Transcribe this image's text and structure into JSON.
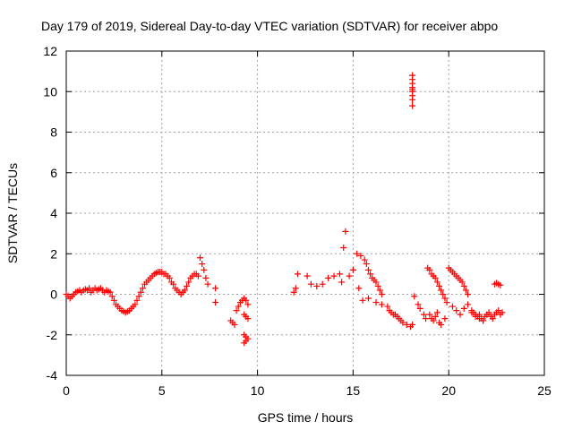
{
  "chart_data": {
    "type": "scatter",
    "title": "Day 179 of 2019, Sidereal Day-to-day VTEC variation (SDTVAR) for receiver abpo",
    "xlabel": "GPS time / hours",
    "ylabel": "SDTVAR / TECUs",
    "xlim": [
      0,
      25
    ],
    "ylim": [
      -4,
      12
    ],
    "xticks": [
      0,
      5,
      10,
      15,
      20,
      25
    ],
    "yticks": [
      -4,
      -2,
      0,
      2,
      4,
      6,
      8,
      10,
      12
    ],
    "xtick_labels": [
      "0",
      "5",
      "10",
      "15",
      "20",
      "25"
    ],
    "ytick_labels": [
      "-4",
      "-2",
      "0",
      "2",
      "4",
      "6",
      "8",
      "10",
      "12"
    ],
    "grid": true,
    "marker": "+",
    "color": "#ff0000",
    "series": [
      {
        "name": "SDTVAR",
        "x": [
          0.0,
          0.1,
          0.2,
          0.3,
          0.4,
          0.5,
          0.6,
          0.7,
          0.8,
          0.9,
          1.0,
          1.1,
          1.2,
          1.3,
          1.4,
          1.5,
          1.6,
          1.7,
          1.8,
          1.9,
          2.0,
          2.1,
          2.2,
          2.3,
          2.4,
          2.5,
          2.6,
          2.7,
          2.8,
          2.9,
          3.0,
          3.1,
          3.2,
          3.3,
          3.4,
          3.5,
          3.6,
          3.7,
          3.8,
          3.9,
          4.0,
          4.1,
          4.2,
          4.3,
          4.4,
          4.5,
          4.6,
          4.7,
          4.8,
          4.9,
          5.0,
          5.1,
          5.2,
          5.3,
          5.4,
          5.5,
          5.6,
          5.7,
          5.8,
          5.9,
          6.0,
          6.1,
          6.2,
          6.3,
          6.4,
          6.5,
          6.6,
          6.7,
          6.8,
          6.9,
          7.0,
          7.1,
          7.2,
          7.3,
          7.4,
          7.8,
          7.8,
          8.6,
          8.7,
          8.8,
          8.9,
          9.0,
          9.1,
          9.2,
          9.3,
          9.4,
          9.5,
          9.3,
          9.4,
          9.5,
          9.3,
          9.4,
          9.5,
          9.3,
          9.4,
          11.9,
          12.0,
          12.1,
          12.6,
          12.8,
          13.1,
          13.4,
          13.7,
          14.0,
          14.3,
          14.5,
          14.6,
          14.4,
          14.8,
          15.0,
          15.2,
          15.4,
          15.6,
          15.7,
          15.8,
          15.9,
          16.0,
          16.1,
          16.2,
          16.3,
          16.4,
          16.5,
          15.3,
          15.5,
          15.8,
          16.2,
          16.5,
          16.8,
          16.9,
          17.0,
          17.1,
          17.2,
          17.3,
          17.4,
          17.5,
          17.6,
          17.8,
          18.0,
          18.1,
          18.2,
          18.1,
          18.1,
          18.1,
          18.1,
          18.1,
          18.1,
          18.1,
          18.1,
          18.1,
          18.4,
          18.5,
          18.7,
          18.8,
          18.9,
          19.0,
          19.1,
          19.2,
          19.3,
          19.4,
          19.5,
          19.6,
          19.7,
          19.8,
          19.9,
          19.0,
          19.1,
          19.2,
          19.3,
          19.4,
          19.5,
          19.6,
          19.8,
          20.0,
          20.1,
          20.2,
          20.3,
          20.4,
          20.5,
          20.6,
          20.7,
          20.8,
          20.9,
          21.0,
          20.2,
          20.4,
          20.6,
          20.8,
          21.0,
          21.2,
          21.4,
          21.6,
          21.8,
          22.0,
          21.2,
          21.3,
          21.4,
          21.5,
          21.6,
          21.7,
          21.8,
          21.9,
          22.0,
          22.1,
          22.2,
          22.3,
          22.4,
          22.5,
          22.6,
          22.7,
          22.8,
          22.4,
          22.5,
          22.6,
          22.7
        ],
        "y": [
          0.0,
          -0.1,
          -0.2,
          -0.1,
          0.0,
          0.1,
          0.15,
          0.2,
          0.1,
          0.2,
          0.25,
          0.2,
          0.3,
          0.1,
          0.2,
          0.3,
          0.2,
          0.25,
          0.3,
          0.2,
          0.1,
          0.2,
          0.15,
          0.1,
          -0.1,
          -0.3,
          -0.5,
          -0.6,
          -0.7,
          -0.8,
          -0.85,
          -0.9,
          -0.85,
          -0.8,
          -0.7,
          -0.6,
          -0.5,
          -0.3,
          -0.1,
          0.1,
          0.3,
          0.5,
          0.6,
          0.7,
          0.8,
          0.9,
          1.0,
          1.05,
          1.1,
          1.1,
          1.1,
          1.0,
          1.0,
          0.9,
          0.8,
          0.6,
          0.5,
          0.3,
          0.2,
          0.1,
          0.0,
          0.1,
          0.2,
          0.4,
          0.6,
          0.8,
          0.9,
          1.0,
          1.0,
          0.9,
          1.8,
          1.5,
          1.2,
          0.8,
          0.5,
          0.3,
          -0.4,
          -1.3,
          -1.4,
          -1.5,
          -0.8,
          -0.6,
          -0.4,
          -0.3,
          -0.2,
          -0.3,
          -0.5,
          -1.0,
          -1.1,
          -1.2,
          -2.0,
          -2.1,
          -2.2,
          -2.4,
          -2.3,
          0.1,
          0.3,
          1.0,
          0.9,
          0.5,
          0.4,
          0.5,
          0.8,
          0.9,
          1.0,
          2.3,
          3.1,
          0.6,
          0.9,
          1.2,
          2.0,
          1.9,
          1.7,
          1.5,
          1.2,
          1.0,
          0.8,
          0.7,
          0.6,
          0.4,
          0.2,
          0.0,
          0.3,
          -0.3,
          -0.2,
          -0.4,
          -0.5,
          -0.6,
          -0.8,
          -0.9,
          -1.0,
          -1.0,
          -1.1,
          -1.2,
          -1.3,
          -1.4,
          -1.5,
          -1.6,
          -1.5,
          -0.1,
          9.3,
          9.6,
          9.8,
          10.0,
          10.2,
          10.4,
          10.6,
          10.8,
          10.1,
          -0.5,
          -0.7,
          -1.0,
          -1.2,
          1.3,
          1.2,
          1.0,
          0.9,
          0.8,
          0.6,
          0.4,
          0.2,
          0.0,
          -0.2,
          -0.4,
          -1.0,
          -1.2,
          -1.3,
          -1.1,
          -0.9,
          -1.4,
          -1.5,
          -1.2,
          1.3,
          1.2,
          1.1,
          1.0,
          0.9,
          0.8,
          0.7,
          0.6,
          0.4,
          0.2,
          0.0,
          -0.6,
          -0.8,
          -1.0,
          -0.7,
          -0.5,
          -0.9,
          -1.1,
          -1.2,
          -1.3,
          -1.0,
          -0.8,
          -0.9,
          -1.0,
          -1.1,
          -1.0,
          -1.2,
          -1.3,
          -1.1,
          -1.0,
          -0.9,
          -1.1,
          -1.2,
          -1.0,
          -0.9,
          -0.8,
          -1.0,
          -0.9,
          0.5,
          0.55,
          0.5,
          0.45
        ]
      }
    ]
  }
}
